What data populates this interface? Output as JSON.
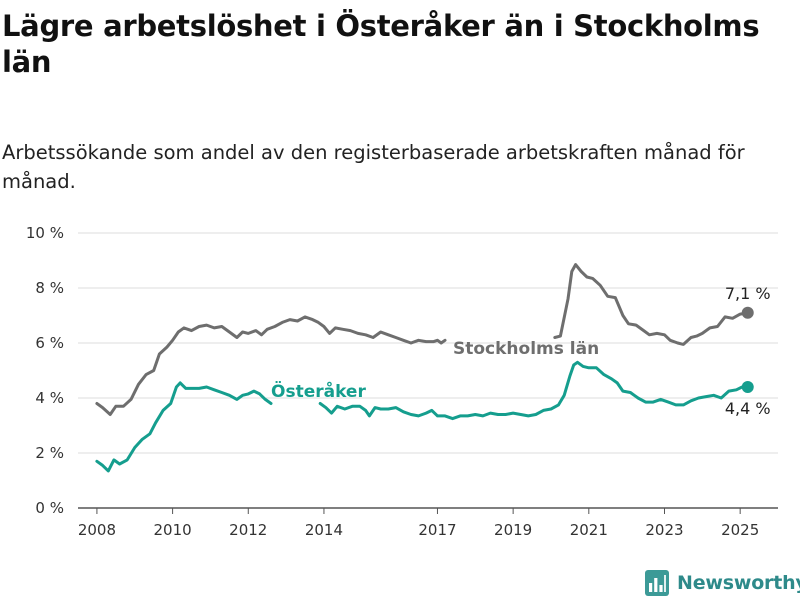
{
  "title": "Lägre arbetslöshet i Österåker än i Stockholms län",
  "subtitle": "Arbetssökande som andel av den registerbaserade arbetskraften månad för månad.",
  "logo": {
    "text": "Newsworthy",
    "icon": "bar-chart-icon"
  },
  "chart_data": {
    "type": "line",
    "ylim": [
      0,
      10
    ],
    "xlim": [
      2007.5,
      2026
    ],
    "y_ticks": [
      {
        "value": 0,
        "label": "0 %"
      },
      {
        "value": 2,
        "label": "2 %"
      },
      {
        "value": 4,
        "label": "4 %"
      },
      {
        "value": 6,
        "label": "6 %"
      },
      {
        "value": 8,
        "label": "8 %"
      },
      {
        "value": 10,
        "label": "10 %"
      }
    ],
    "x_ticks": [
      {
        "value": 2008,
        "label": "2008"
      },
      {
        "value": 2010,
        "label": "2010"
      },
      {
        "value": 2012,
        "label": "2012"
      },
      {
        "value": 2014,
        "label": "2014"
      },
      {
        "value": 2017,
        "label": "2017"
      },
      {
        "value": 2019,
        "label": "2019"
      },
      {
        "value": 2021,
        "label": "2021"
      },
      {
        "value": 2023,
        "label": "2023"
      },
      {
        "value": 2025,
        "label": "2025"
      }
    ],
    "grid": true,
    "series": [
      {
        "name": "Stockholms län",
        "color": "#6e6e6e",
        "end_label": "7,1 %",
        "segments": [
          [
            [
              2008.0,
              3.8
            ],
            [
              2008.15,
              3.65
            ],
            [
              2008.35,
              3.4
            ],
            [
              2008.5,
              3.7
            ],
            [
              2008.7,
              3.7
            ],
            [
              2008.9,
              3.95
            ],
            [
              2009.1,
              4.5
            ],
            [
              2009.3,
              4.85
            ],
            [
              2009.5,
              5.0
            ],
            [
              2009.65,
              5.6
            ],
            [
              2009.85,
              5.85
            ],
            [
              2010.0,
              6.1
            ],
            [
              2010.15,
              6.4
            ],
            [
              2010.3,
              6.55
            ],
            [
              2010.5,
              6.45
            ],
            [
              2010.7,
              6.6
            ],
            [
              2010.9,
              6.65
            ],
            [
              2011.1,
              6.55
            ],
            [
              2011.3,
              6.6
            ],
            [
              2011.5,
              6.4
            ],
            [
              2011.7,
              6.2
            ],
            [
              2011.85,
              6.4
            ],
            [
              2012.0,
              6.35
            ],
            [
              2012.2,
              6.45
            ],
            [
              2012.35,
              6.3
            ],
            [
              2012.5,
              6.5
            ],
            [
              2012.7,
              6.6
            ],
            [
              2012.9,
              6.75
            ],
            [
              2013.1,
              6.85
            ],
            [
              2013.3,
              6.8
            ],
            [
              2013.5,
              6.95
            ],
            [
              2013.7,
              6.85
            ],
            [
              2013.85,
              6.75
            ],
            [
              2014.0,
              6.6
            ],
            [
              2014.15,
              6.35
            ],
            [
              2014.3,
              6.55
            ],
            [
              2014.5,
              6.5
            ],
            [
              2014.7,
              6.45
            ],
            [
              2014.9,
              6.35
            ],
            [
              2015.1,
              6.3
            ],
            [
              2015.3,
              6.2
            ],
            [
              2015.5,
              6.4
            ],
            [
              2015.7,
              6.3
            ],
            [
              2015.9,
              6.2
            ],
            [
              2016.1,
              6.1
            ],
            [
              2016.3,
              6.0
            ],
            [
              2016.5,
              6.1
            ],
            [
              2016.7,
              6.05
            ],
            [
              2016.9,
              6.05
            ],
            [
              2017.0,
              6.1
            ],
            [
              2017.1,
              6.0
            ],
            [
              2017.2,
              6.1
            ]
          ],
          [
            [
              2020.1,
              6.2
            ],
            [
              2020.25,
              6.25
            ],
            [
              2020.45,
              7.6
            ],
            [
              2020.55,
              8.6
            ],
            [
              2020.65,
              8.85
            ],
            [
              2020.8,
              8.6
            ],
            [
              2020.95,
              8.4
            ],
            [
              2021.1,
              8.35
            ],
            [
              2021.3,
              8.1
            ],
            [
              2021.5,
              7.7
            ],
            [
              2021.7,
              7.65
            ],
            [
              2021.9,
              7.0
            ],
            [
              2022.05,
              6.7
            ],
            [
              2022.25,
              6.65
            ],
            [
              2022.45,
              6.45
            ],
            [
              2022.6,
              6.3
            ],
            [
              2022.8,
              6.35
            ],
            [
              2023.0,
              6.3
            ],
            [
              2023.15,
              6.1
            ],
            [
              2023.35,
              6.0
            ],
            [
              2023.5,
              5.95
            ],
            [
              2023.7,
              6.2
            ],
            [
              2023.85,
              6.25
            ],
            [
              2024.0,
              6.35
            ],
            [
              2024.2,
              6.55
            ],
            [
              2024.4,
              6.6
            ],
            [
              2024.6,
              6.95
            ],
            [
              2024.8,
              6.9
            ],
            [
              2025.0,
              7.05
            ],
            [
              2025.2,
              7.1
            ]
          ]
        ]
      },
      {
        "name": "Österåker",
        "color": "#159e8e",
        "end_label": "4,4 %",
        "segments": [
          [
            [
              2008.0,
              1.7
            ],
            [
              2008.15,
              1.55
            ],
            [
              2008.3,
              1.35
            ],
            [
              2008.45,
              1.75
            ],
            [
              2008.6,
              1.6
            ],
            [
              2008.8,
              1.75
            ],
            [
              2009.0,
              2.2
            ],
            [
              2009.2,
              2.5
            ],
            [
              2009.4,
              2.7
            ],
            [
              2009.55,
              3.1
            ],
            [
              2009.75,
              3.55
            ],
            [
              2009.95,
              3.8
            ],
            [
              2010.1,
              4.4
            ],
            [
              2010.2,
              4.55
            ],
            [
              2010.35,
              4.35
            ],
            [
              2010.5,
              4.35
            ],
            [
              2010.7,
              4.35
            ],
            [
              2010.9,
              4.4
            ],
            [
              2011.1,
              4.3
            ],
            [
              2011.3,
              4.2
            ],
            [
              2011.5,
              4.1
            ],
            [
              2011.7,
              3.95
            ],
            [
              2011.85,
              4.1
            ],
            [
              2012.0,
              4.15
            ],
            [
              2012.15,
              4.25
            ],
            [
              2012.3,
              4.15
            ],
            [
              2012.45,
              3.95
            ],
            [
              2012.6,
              3.8
            ]
          ],
          [
            [
              2013.9,
              3.8
            ],
            [
              2014.05,
              3.65
            ],
            [
              2014.2,
              3.45
            ],
            [
              2014.35,
              3.7
            ],
            [
              2014.55,
              3.6
            ],
            [
              2014.75,
              3.7
            ],
            [
              2014.95,
              3.7
            ],
            [
              2015.1,
              3.55
            ],
            [
              2015.2,
              3.35
            ],
            [
              2015.35,
              3.65
            ],
            [
              2015.5,
              3.6
            ],
            [
              2015.7,
              3.6
            ],
            [
              2015.9,
              3.65
            ],
            [
              2016.1,
              3.5
            ],
            [
              2016.3,
              3.4
            ],
            [
              2016.5,
              3.35
            ],
            [
              2016.7,
              3.45
            ],
            [
              2016.85,
              3.55
            ],
            [
              2017.0,
              3.35
            ],
            [
              2017.2,
              3.35
            ],
            [
              2017.4,
              3.25
            ],
            [
              2017.6,
              3.35
            ],
            [
              2017.8,
              3.35
            ],
            [
              2018.0,
              3.4
            ],
            [
              2018.2,
              3.35
            ],
            [
              2018.4,
              3.45
            ],
            [
              2018.6,
              3.4
            ],
            [
              2018.8,
              3.4
            ],
            [
              2019.0,
              3.45
            ],
            [
              2019.2,
              3.4
            ],
            [
              2019.4,
              3.35
            ],
            [
              2019.6,
              3.4
            ],
            [
              2019.8,
              3.55
            ],
            [
              2020.0,
              3.6
            ],
            [
              2020.2,
              3.75
            ],
            [
              2020.35,
              4.1
            ],
            [
              2020.5,
              4.8
            ],
            [
              2020.6,
              5.2
            ],
            [
              2020.7,
              5.3
            ],
            [
              2020.85,
              5.15
            ],
            [
              2021.0,
              5.1
            ],
            [
              2021.2,
              5.1
            ],
            [
              2021.4,
              4.85
            ],
            [
              2021.6,
              4.7
            ],
            [
              2021.75,
              4.55
            ],
            [
              2021.9,
              4.25
            ],
            [
              2022.1,
              4.2
            ],
            [
              2022.3,
              4.0
            ],
            [
              2022.5,
              3.85
            ],
            [
              2022.7,
              3.85
            ],
            [
              2022.9,
              3.95
            ],
            [
              2023.1,
              3.85
            ],
            [
              2023.3,
              3.75
            ],
            [
              2023.5,
              3.75
            ],
            [
              2023.7,
              3.9
            ],
            [
              2023.9,
              4.0
            ],
            [
              2024.1,
              4.05
            ],
            [
              2024.3,
              4.1
            ],
            [
              2024.5,
              4.0
            ],
            [
              2024.7,
              4.25
            ],
            [
              2024.9,
              4.3
            ],
            [
              2025.05,
              4.4
            ],
            [
              2025.2,
              4.4
            ]
          ]
        ]
      }
    ]
  }
}
